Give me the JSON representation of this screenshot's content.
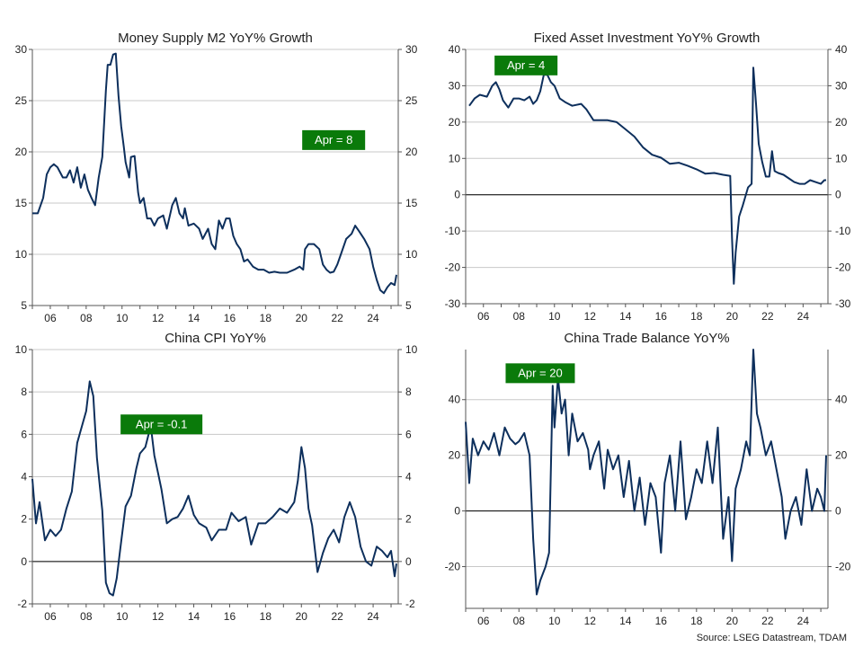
{
  "source": "Source: LSEG Datastream, TDAM",
  "colors": {
    "line": "#0d2f5c",
    "grid": "#c8c8c8",
    "annotation_bg": "#0a7a0a",
    "annotation_text": "#ffffff",
    "zero_line": "#000000"
  },
  "chart_data": [
    {
      "type": "line",
      "title": "Money Supply M2 YoY% Growth",
      "x_ticks": [
        "06",
        "08",
        "10",
        "12",
        "14",
        "16",
        "18",
        "20",
        "22",
        "24"
      ],
      "x_tick_values": [
        2006,
        2008,
        2010,
        2012,
        2014,
        2016,
        2018,
        2020,
        2022,
        2024
      ],
      "xlim": [
        2005.0,
        2025.4
      ],
      "ylim": [
        5,
        30
      ],
      "y_ticks": [
        5,
        10,
        15,
        20,
        25,
        30
      ],
      "zero_line": false,
      "grid": true,
      "annotation": {
        "text": "Apr  = 8",
        "x": 2021.8,
        "y": 20.8
      },
      "series": [
        {
          "x": [
            2005.0,
            2005.3,
            2005.6,
            2005.8,
            2006.0,
            2006.2,
            2006.4,
            2006.7,
            2006.9,
            2007.1,
            2007.3,
            2007.5,
            2007.7,
            2007.9,
            2008.1,
            2008.3,
            2008.5,
            2008.7,
            2008.9,
            2009.1,
            2009.2,
            2009.35,
            2009.5,
            2009.65,
            2009.8,
            2009.95,
            2010.1,
            2010.2,
            2010.4,
            2010.5,
            2010.7,
            2010.9,
            2011.0,
            2011.2,
            2011.4,
            2011.6,
            2011.8,
            2012.0,
            2012.3,
            2012.5,
            2012.8,
            2013.0,
            2013.2,
            2013.4,
            2013.5,
            2013.7,
            2014.0,
            2014.3,
            2014.5,
            2014.8,
            2015.0,
            2015.2,
            2015.4,
            2015.6,
            2015.8,
            2016.0,
            2016.2,
            2016.4,
            2016.6,
            2016.8,
            2017.0,
            2017.3,
            2017.6,
            2017.9,
            2018.2,
            2018.5,
            2018.8,
            2019.2,
            2019.6,
            2019.9,
            2020.1,
            2020.2,
            2020.4,
            2020.7,
            2021.0,
            2021.2,
            2021.4,
            2021.6,
            2021.8,
            2022.0,
            2022.2,
            2022.5,
            2022.8,
            2023.0,
            2023.2,
            2023.5,
            2023.8,
            2024.0,
            2024.2,
            2024.4,
            2024.6,
            2024.8,
            2025.0,
            2025.2,
            2025.3
          ],
          "y": [
            14,
            14,
            15.5,
            17.8,
            18.5,
            18.8,
            18.5,
            17.5,
            17.5,
            18.2,
            17,
            18.5,
            16.5,
            17.8,
            16.3,
            15.5,
            14.8,
            17.5,
            19.5,
            26,
            28.5,
            28.5,
            29.5,
            29.6,
            25.5,
            22.5,
            20.5,
            19,
            17.5,
            19.5,
            19.6,
            16,
            15,
            15.5,
            13.5,
            13.5,
            12.8,
            13.5,
            13.8,
            12.5,
            14.8,
            15.5,
            14,
            13.5,
            14.5,
            12.8,
            13,
            12.5,
            11.5,
            12.5,
            11,
            10.5,
            13.3,
            12.5,
            13.5,
            13.5,
            11.8,
            11,
            10.5,
            9.3,
            9.5,
            8.8,
            8.5,
            8.5,
            8.2,
            8.3,
            8.2,
            8.2,
            8.5,
            8.8,
            8.5,
            10.5,
            11,
            11,
            10.5,
            9,
            8.5,
            8.2,
            8.3,
            9,
            10,
            11.5,
            12,
            12.8,
            12.3,
            11.5,
            10.5,
            8.8,
            7.5,
            6.5,
            6.2,
            6.8,
            7.2,
            7.0,
            8.0
          ]
        }
      ]
    },
    {
      "type": "line",
      "title": "Fixed Asset Investment YoY% Growth",
      "x_ticks": [
        "06",
        "08",
        "10",
        "12",
        "14",
        "16",
        "18",
        "20",
        "22",
        "24"
      ],
      "x_tick_values": [
        2006,
        2008,
        2010,
        2012,
        2014,
        2016,
        2018,
        2020,
        2022,
        2024
      ],
      "xlim": [
        2005.0,
        2025.4
      ],
      "ylim": [
        -30,
        40
      ],
      "y_ticks": [
        -30,
        -20,
        -10,
        0,
        10,
        20,
        30,
        40
      ],
      "zero_line": true,
      "grid": true,
      "annotation": {
        "text": "Apr  = 4",
        "x": 2008.4,
        "y": 34.6
      },
      "series": [
        {
          "x": [
            2005.2,
            2005.5,
            2005.8,
            2006.2,
            2006.5,
            2006.7,
            2006.9,
            2007.1,
            2007.4,
            2007.7,
            2008.0,
            2008.3,
            2008.6,
            2008.8,
            2009.0,
            2009.2,
            2009.4,
            2009.6,
            2009.8,
            2010.0,
            2010.3,
            2010.6,
            2011.0,
            2011.5,
            2011.8,
            2012.0,
            2012.2,
            2012.6,
            2013.0,
            2013.5,
            2014.0,
            2014.5,
            2015.0,
            2015.5,
            2016.0,
            2016.5,
            2017.0,
            2017.5,
            2018.0,
            2018.5,
            2019.0,
            2019.5,
            2019.9,
            2020.0,
            2020.1,
            2020.2,
            2020.4,
            2020.6,
            2020.9,
            2021.1,
            2021.2,
            2021.35,
            2021.5,
            2021.7,
            2021.9,
            2022.1,
            2022.25,
            2022.4,
            2022.6,
            2022.9,
            2023.2,
            2023.5,
            2023.8,
            2024.1,
            2024.4,
            2024.7,
            2025.0,
            2025.2,
            2025.3
          ],
          "y": [
            24.5,
            26.5,
            27.5,
            27,
            30,
            31,
            29,
            26,
            24,
            26.5,
            26.5,
            26,
            27,
            25,
            26,
            28.5,
            33,
            33,
            31,
            30,
            26.5,
            25.5,
            24.5,
            25,
            23.5,
            22,
            20.5,
            20.5,
            20.5,
            20,
            18,
            16,
            13,
            11,
            10.2,
            8.5,
            8.8,
            8,
            7,
            5.8,
            6,
            5.5,
            5.2,
            -12,
            -24.5,
            -16,
            -6,
            -3,
            2,
            3,
            35,
            25,
            14,
            9,
            5,
            5,
            12,
            6.5,
            6,
            5.5,
            4.5,
            3.5,
            3,
            3,
            4,
            3.5,
            3,
            4,
            4
          ]
        }
      ]
    },
    {
      "type": "line",
      "title": "China CPI YoY%",
      "x_ticks": [
        "06",
        "08",
        "10",
        "12",
        "14",
        "16",
        "18",
        "20",
        "22",
        "24"
      ],
      "x_tick_values": [
        2006,
        2008,
        2010,
        2012,
        2014,
        2016,
        2018,
        2020,
        2022,
        2024
      ],
      "xlim": [
        2005.0,
        2025.4
      ],
      "ylim": [
        -2,
        10
      ],
      "y_ticks": [
        -2,
        0,
        2,
        4,
        6,
        8,
        10
      ],
      "zero_line": true,
      "grid": true,
      "annotation": {
        "text": "Apr  = -0.1",
        "x": 2012.2,
        "y": 6.3
      },
      "series": [
        {
          "x": [
            2005.0,
            2005.2,
            2005.4,
            2005.7,
            2006.0,
            2006.3,
            2006.6,
            2006.9,
            2007.2,
            2007.5,
            2007.8,
            2008.0,
            2008.2,
            2008.4,
            2008.6,
            2008.9,
            2009.1,
            2009.3,
            2009.5,
            2009.7,
            2009.9,
            2010.2,
            2010.5,
            2010.8,
            2011.0,
            2011.3,
            2011.6,
            2011.8,
            2012.0,
            2012.2,
            2012.5,
            2012.8,
            2013.1,
            2013.4,
            2013.7,
            2014.0,
            2014.3,
            2014.7,
            2015.0,
            2015.4,
            2015.8,
            2016.1,
            2016.5,
            2016.9,
            2017.2,
            2017.6,
            2018.0,
            2018.4,
            2018.8,
            2019.2,
            2019.6,
            2019.8,
            2020.0,
            2020.2,
            2020.4,
            2020.6,
            2020.9,
            2021.2,
            2021.5,
            2021.8,
            2022.1,
            2022.4,
            2022.7,
            2023.0,
            2023.3,
            2023.6,
            2023.9,
            2024.2,
            2024.5,
            2024.8,
            2025.0,
            2025.2,
            2025.3
          ],
          "y": [
            3.9,
            1.8,
            2.8,
            1.0,
            1.5,
            1.2,
            1.5,
            2.5,
            3.3,
            5.6,
            6.5,
            7.1,
            8.5,
            7.8,
            4.9,
            2.4,
            -1.0,
            -1.5,
            -1.6,
            -0.8,
            0.6,
            2.6,
            3.1,
            4.4,
            5.1,
            5.4,
            6.4,
            5.0,
            4.2,
            3.4,
            1.8,
            2.0,
            2.1,
            2.5,
            3.1,
            2.2,
            1.8,
            1.6,
            1.0,
            1.5,
            1.5,
            2.3,
            1.9,
            2.1,
            0.8,
            1.8,
            1.8,
            2.1,
            2.5,
            2.3,
            2.8,
            3.8,
            5.4,
            4.4,
            2.5,
            1.7,
            -0.5,
            0.4,
            1.1,
            1.5,
            0.9,
            2.1,
            2.8,
            2.1,
            0.7,
            0.0,
            -0.2,
            0.7,
            0.5,
            0.2,
            0.5,
            -0.7,
            -0.1
          ]
        }
      ]
    },
    {
      "type": "line",
      "title": "China Trade Balance YoY%",
      "x_ticks": [
        "06",
        "08",
        "10",
        "12",
        "14",
        "16",
        "18",
        "20",
        "22",
        "24"
      ],
      "x_tick_values": [
        2006,
        2008,
        2010,
        2012,
        2014,
        2016,
        2018,
        2020,
        2022,
        2024
      ],
      "xlim": [
        2005.0,
        2025.4
      ],
      "ylim": [
        -35,
        58
      ],
      "y_ticks": [
        -20,
        0,
        20,
        40
      ],
      "zero_line": true,
      "grid": true,
      "annotation": {
        "text": "Apr  = 20",
        "x": 2009.2,
        "y": 48.2
      },
      "series": [
        {
          "x": [
            2005.0,
            2005.2,
            2005.4,
            2005.7,
            2006.0,
            2006.3,
            2006.6,
            2006.9,
            2007.2,
            2007.5,
            2007.8,
            2008.0,
            2008.3,
            2008.6,
            2008.8,
            2009.0,
            2009.2,
            2009.5,
            2009.7,
            2009.9,
            2010.0,
            2010.2,
            2010.4,
            2010.6,
            2010.8,
            2011.0,
            2011.3,
            2011.6,
            2011.9,
            2012.0,
            2012.2,
            2012.5,
            2012.8,
            2013.0,
            2013.3,
            2013.6,
            2013.9,
            2014.2,
            2014.5,
            2014.8,
            2015.1,
            2015.4,
            2015.7,
            2016.0,
            2016.2,
            2016.5,
            2016.8,
            2017.1,
            2017.4,
            2017.7,
            2018.0,
            2018.3,
            2018.6,
            2018.9,
            2019.2,
            2019.5,
            2019.8,
            2020.0,
            2020.2,
            2020.5,
            2020.8,
            2021.0,
            2021.2,
            2021.4,
            2021.6,
            2021.9,
            2022.2,
            2022.5,
            2022.8,
            2023.0,
            2023.3,
            2023.6,
            2023.9,
            2024.2,
            2024.5,
            2024.8,
            2025.0,
            2025.2,
            2025.3
          ],
          "y": [
            32,
            10,
            26,
            20,
            25,
            22,
            28,
            20,
            30,
            26,
            24,
            25,
            28,
            20,
            -10,
            -30,
            -25,
            -20,
            -15,
            45,
            30,
            48,
            35,
            40,
            20,
            35,
            25,
            28,
            22,
            15,
            20,
            25,
            8,
            22,
            15,
            20,
            5,
            18,
            0,
            12,
            -5,
            10,
            5,
            -15,
            10,
            20,
            0,
            25,
            -3,
            5,
            15,
            10,
            25,
            10,
            30,
            -10,
            5,
            -18,
            8,
            15,
            25,
            20,
            58,
            35,
            30,
            20,
            25,
            15,
            5,
            -10,
            0,
            5,
            -5,
            15,
            0,
            8,
            5,
            0,
            20
          ]
        }
      ]
    }
  ]
}
